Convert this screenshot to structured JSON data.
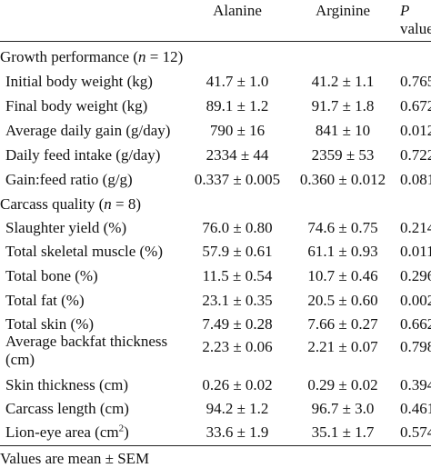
{
  "header": {
    "col_alanine": "Alanine",
    "col_arginine": "Arginine",
    "col_p_top": "P",
    "col_p_bottom": "value"
  },
  "sections": [
    {
      "title_prefix": "Growth performance (",
      "title_n": "n",
      "title_suffix": " = 12)",
      "rows": [
        {
          "label": "Initial body weight (kg)",
          "alanine": "41.7 ± 1.0",
          "arginine": "41.2 ± 1.1",
          "p": "0.765"
        },
        {
          "label": "Final body weight (kg)",
          "alanine": "89.1 ± 1.2",
          "arginine": "91.7 ± 1.8",
          "p": "0.672"
        },
        {
          "label": "Average daily gain (g/day)",
          "alanine": "790 ± 16",
          "arginine": "841 ± 10",
          "p": "0.012"
        },
        {
          "label": "Daily feed intake (g/day)",
          "alanine": "2334 ± 44",
          "arginine": "2359 ± 53",
          "p": "0.722"
        },
        {
          "label": "Gain:feed ratio (g/g)",
          "alanine": "0.337 ± 0.005",
          "arginine": "0.360 ± 0.012",
          "p": "0.081"
        }
      ]
    },
    {
      "title_prefix": "Carcass quality (",
      "title_n": "n",
      "title_suffix": " = 8)",
      "rows": [
        {
          "label": "Slaughter yield (%)",
          "alanine": "76.0 ± 0.80",
          "arginine": "74.6 ± 0.75",
          "p": "0.214"
        },
        {
          "label": "Total skeletal muscle (%)",
          "alanine": "57.9 ± 0.61",
          "arginine": "61.1 ± 0.93",
          "p": "0.011"
        },
        {
          "label": "Total bone (%)",
          "alanine": "11.5 ± 0.54",
          "arginine": "10.7 ± 0.46",
          "p": "0.296"
        },
        {
          "label": "Total fat (%)",
          "alanine": "23.1 ± 0.35",
          "arginine": "20.5 ± 0.60",
          "p": "0.002"
        },
        {
          "label": "Total skin (%)",
          "alanine": "7.49 ± 0.28",
          "arginine": "7.66 ± 0.27",
          "p": "0.662"
        },
        {
          "label": "Average backfat thickness",
          "label2": "(cm)",
          "alanine": "2.23 ± 0.06",
          "arginine": "2.21 ± 0.07",
          "p": "0.798"
        },
        {
          "label": "Skin thickness (cm)",
          "alanine": "0.26 ± 0.02",
          "arginine": "0.29 ± 0.02",
          "p": "0.394"
        },
        {
          "label": "Carcass length (cm)",
          "alanine": "94.2 ± 1.2",
          "arginine": "96.7 ± 3.0",
          "p": "0.461"
        },
        {
          "label": "Lion-eye area (cm",
          "label_sup": "2",
          "label_end": ")",
          "alanine": "33.6 ± 1.9",
          "arginine": "35.1 ± 1.7",
          "p": "0.574"
        }
      ]
    }
  ],
  "footnote": "Values are mean ± SEM"
}
